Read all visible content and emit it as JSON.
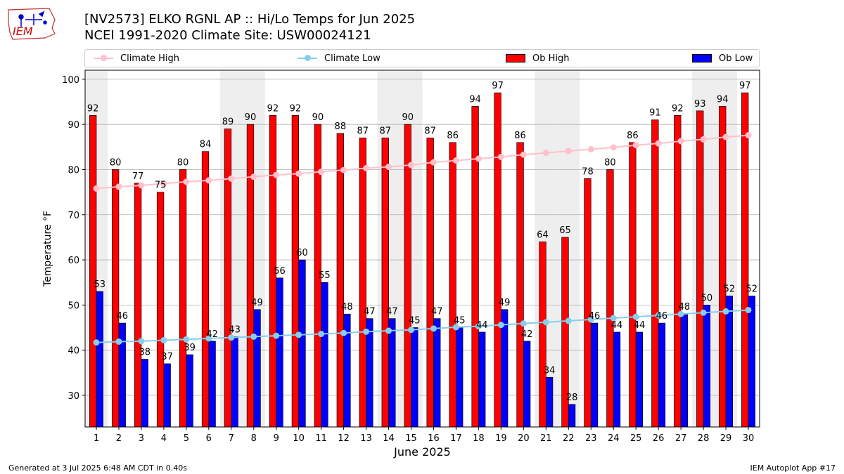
{
  "header": {
    "title_line1": "[NV2573] ELKO RGNL AP :: Hi/Lo Temps for Jun 2025",
    "title_line2": "NCEI 1991-2020 Climate Site: USW00024121",
    "logo_text": "IEM"
  },
  "footer": {
    "left": "Generated at 3 Jul 2025 6:48 AM CDT in 0.40s",
    "right": "IEM Autoplot App #17"
  },
  "colors": {
    "ob_high": "#ff0000",
    "ob_low": "#0000ff",
    "climate_high": "#ffc0cb",
    "climate_low": "#87ceeb",
    "weekend_shade": "#eeeeee"
  },
  "chart_data": {
    "type": "bar",
    "xlabel": "June 2025",
    "ylabel": "Temperature °F",
    "ylim": [
      23,
      102
    ],
    "yticks": [
      30,
      40,
      50,
      60,
      70,
      80,
      90,
      100
    ],
    "grid": "horizontal",
    "legend_position": "top",
    "categories": [
      1,
      2,
      3,
      4,
      5,
      6,
      7,
      8,
      9,
      10,
      11,
      12,
      13,
      14,
      15,
      16,
      17,
      18,
      19,
      20,
      21,
      22,
      23,
      24,
      25,
      26,
      27,
      28,
      29,
      30
    ],
    "shaded_days": [
      1,
      7,
      8,
      14,
      15,
      21,
      22,
      28,
      29
    ],
    "series": [
      {
        "name": "Ob High",
        "kind": "bar",
        "values": [
          92,
          80,
          77,
          75,
          80,
          84,
          89,
          90,
          92,
          92,
          90,
          88,
          87,
          87,
          90,
          87,
          86,
          94,
          97,
          86,
          64,
          65,
          78,
          80,
          86,
          91,
          92,
          93,
          94,
          97
        ]
      },
      {
        "name": "Ob Low",
        "kind": "bar",
        "values": [
          53,
          46,
          38,
          37,
          39,
          42,
          43,
          49,
          56,
          60,
          55,
          48,
          47,
          47,
          45,
          47,
          45,
          44,
          49,
          42,
          34,
          28,
          46,
          44,
          44,
          46,
          48,
          50,
          52,
          52
        ]
      },
      {
        "name": "Climate High",
        "kind": "line",
        "values": [
          75.8,
          76.2,
          76.5,
          76.9,
          77.3,
          77.6,
          78.0,
          78.4,
          78.8,
          79.1,
          79.5,
          79.9,
          80.3,
          80.6,
          81.0,
          81.6,
          82.0,
          82.4,
          82.8,
          83.3,
          83.7,
          84.1,
          84.5,
          84.9,
          85.4,
          85.8,
          86.3,
          86.7,
          87.2,
          87.6
        ]
      },
      {
        "name": "Climate Low",
        "kind": "line",
        "values": [
          41.7,
          41.9,
          42.0,
          42.2,
          42.4,
          42.6,
          42.8,
          43.0,
          43.2,
          43.4,
          43.6,
          43.8,
          44.1,
          44.3,
          44.5,
          44.8,
          45.1,
          45.3,
          45.6,
          45.9,
          46.2,
          46.5,
          46.8,
          47.1,
          47.4,
          47.7,
          48.0,
          48.3,
          48.6,
          48.9
        ]
      }
    ]
  }
}
